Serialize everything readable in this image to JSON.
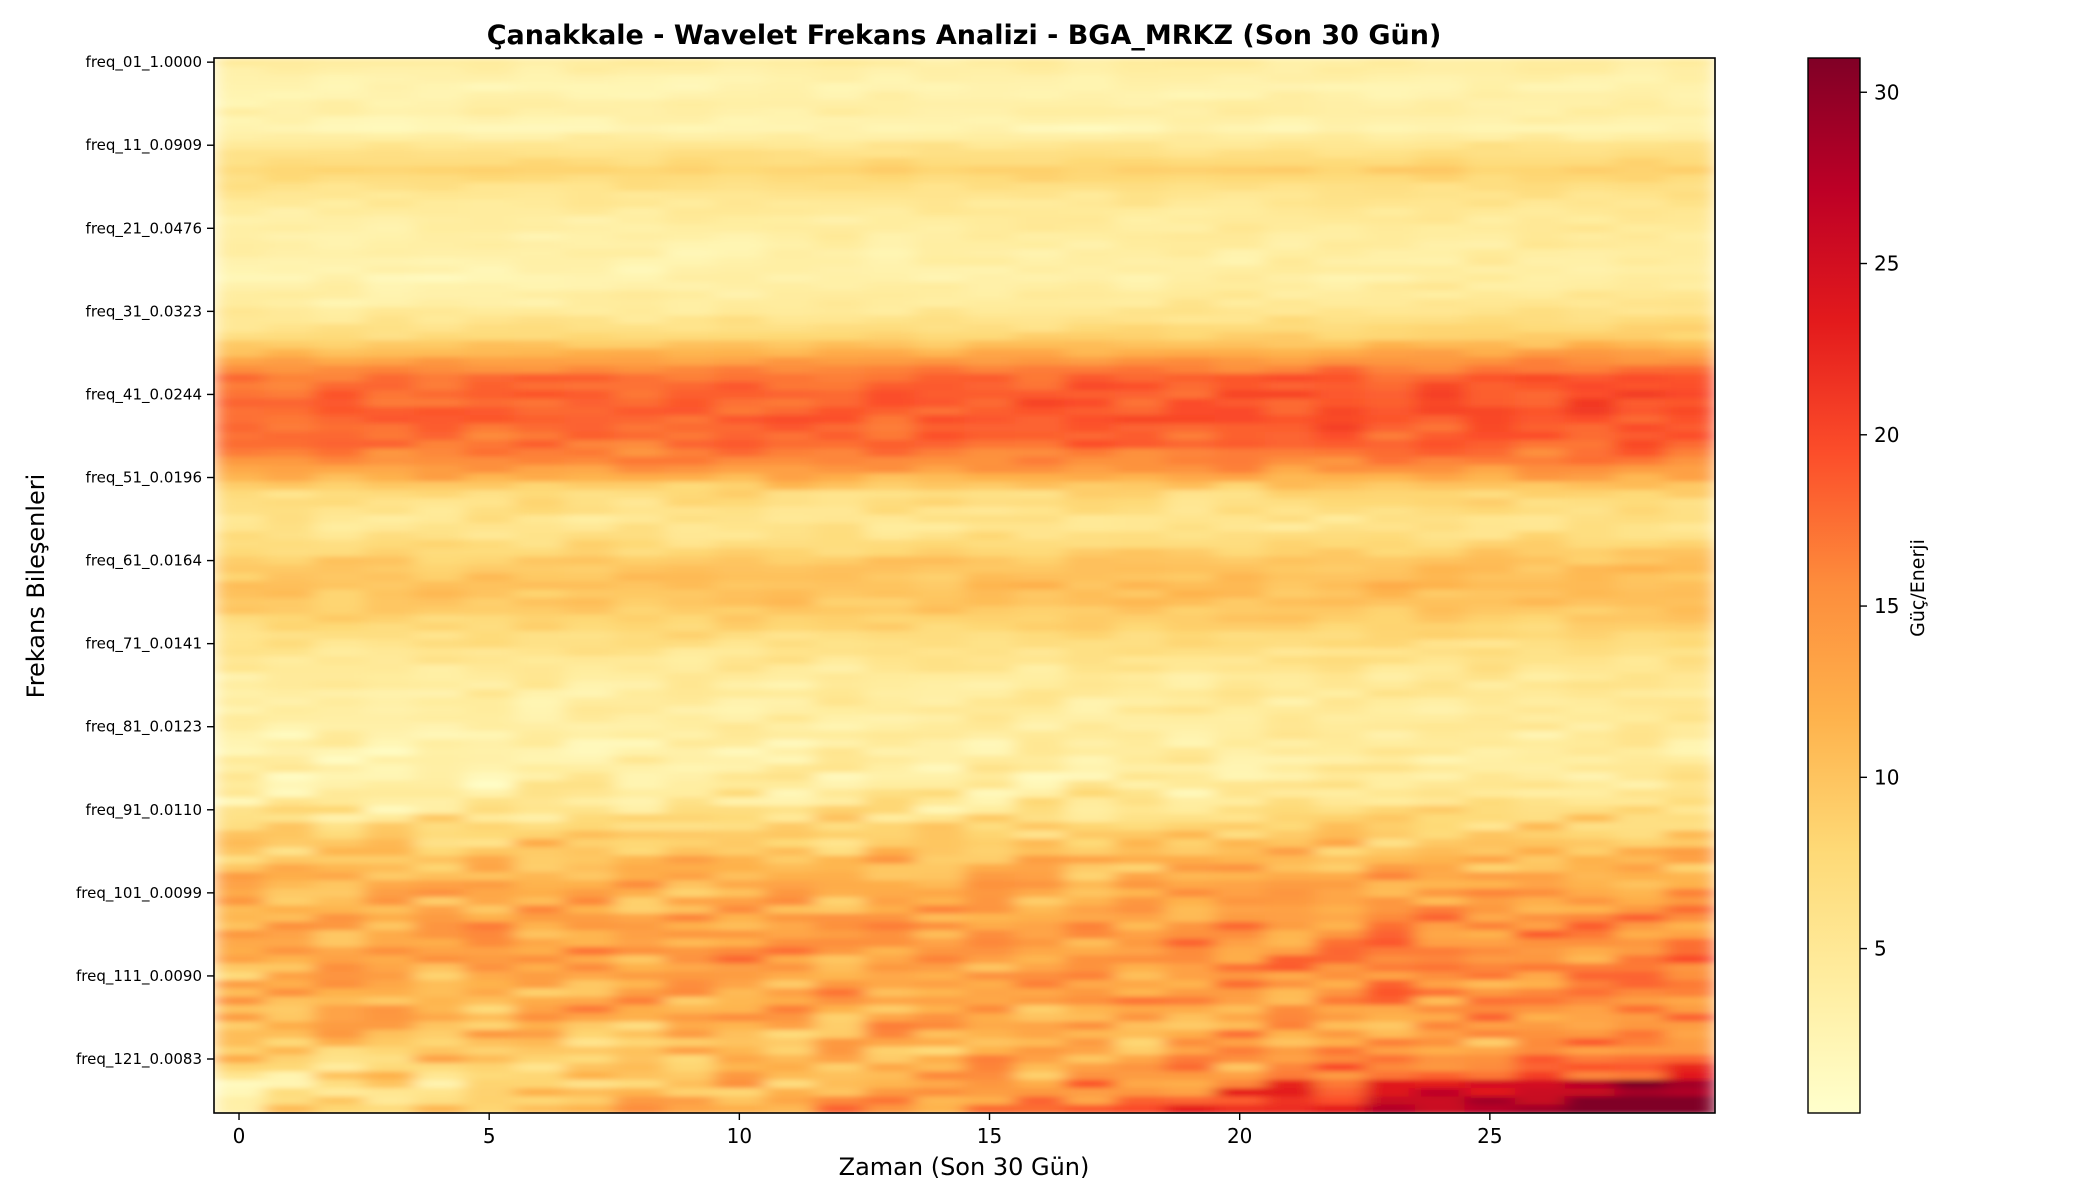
{
  "chart_data": {
    "type": "heatmap",
    "title": "Çanakkale - Wavelet Frekans Analizi - BGA_MRKZ (Son 30 Gün)",
    "xlabel": "Zaman (Son 30 Gün)",
    "ylabel": "Frekans Bileşenleri",
    "colorbar_label": "Güç/Enerji",
    "colormap": "YlOrRd",
    "colormap_stops": [
      "#ffffcc",
      "#ffeda0",
      "#fed976",
      "#feb24c",
      "#fd8d3c",
      "#fc4e2a",
      "#e31a1c",
      "#bd0026",
      "#800026"
    ],
    "color_range": [
      0.2,
      31
    ],
    "xlim": [
      -0.5,
      29.5
    ],
    "x_ticks": [
      0,
      5,
      10,
      15,
      20,
      25
    ],
    "n_time": 30,
    "n_freq": 127,
    "y_ticks": [
      "freq_01_1.0000",
      "freq_11_0.0909",
      "freq_21_0.0476",
      "freq_31_0.0323",
      "freq_41_0.0244",
      "freq_51_0.0196",
      "freq_61_0.0164",
      "freq_71_0.0141",
      "freq_81_0.0123",
      "freq_91_0.0110",
      "freq_101_0.0099",
      "freq_111_0.0090",
      "freq_121_0.0083"
    ],
    "colorbar_ticks": [
      5,
      10,
      15,
      20,
      25,
      30
    ],
    "row_profile": {
      "rows": [
        0,
        3,
        6,
        8,
        10,
        13,
        16,
        19,
        22,
        26,
        30,
        33,
        36,
        38,
        42,
        46,
        49,
        52,
        56,
        60,
        63,
        66,
        70,
        74,
        78,
        82,
        86,
        90,
        94,
        98,
        102,
        106,
        110,
        114,
        118,
        121,
        124,
        126
      ],
      "values": [
        4,
        2.5,
        3.5,
        2,
        5,
        8,
        5,
        3.5,
        3,
        2.5,
        4,
        7,
        13,
        17,
        18,
        17,
        14,
        7,
        5,
        9,
        10,
        9,
        6,
        4,
        3.5,
        3,
        3,
        5,
        9,
        11,
        12,
        13,
        12,
        11,
        9,
        7,
        5,
        6
      ]
    },
    "time_trend": {
      "rows": [
        0,
        36,
        50,
        95,
        110,
        118,
        126
      ],
      "per_day": [
        0,
        0.08,
        0.03,
        0.05,
        0.12,
        0.18,
        0.7
      ]
    },
    "texture_amplitude": {
      "rows": [
        0,
        36,
        50,
        60,
        80,
        90,
        126
      ],
      "values": [
        0.6,
        1.0,
        1.5,
        1.0,
        1.2,
        2.5,
        3.5
      ]
    }
  }
}
